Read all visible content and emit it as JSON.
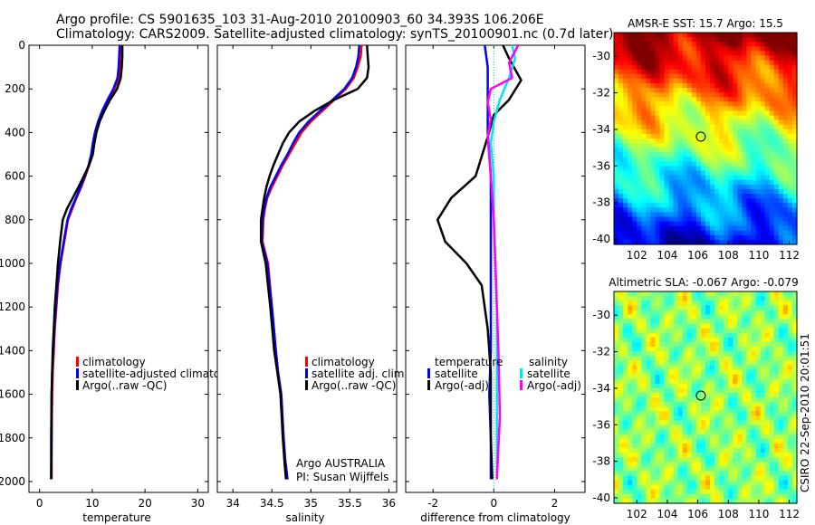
{
  "header": {
    "title_line1": "Argo profile: CS 5901635_103 31-Aug-2010 20100903_60 34.393S 106.206E",
    "title_line2": "Climatology: CARS2009. Satellite-adjusted climatology: synTS_20100901.nc (0.7d later)"
  },
  "footer": {
    "credit": "CSIRO 22-Sep-2010 20:01:51"
  },
  "colors": {
    "climatology": "#ff0000",
    "satellite": "#0000ff",
    "argo": "#000000",
    "sal_satellite": "#00e5ee",
    "sal_argo": "#ff00ff",
    "zero_line": "#00cccc"
  },
  "chart_data": [
    {
      "type": "line",
      "id": "temperature",
      "xlabel": "temperature",
      "ylabel": "",
      "xlim": [
        -2,
        32
      ],
      "ylim": [
        2050,
        0
      ],
      "xticks": [
        0,
        10,
        20,
        30
      ],
      "yticks": [
        0,
        200,
        400,
        600,
        800,
        1000,
        1200,
        1400,
        1600,
        1800,
        2000
      ],
      "legend": [
        "climatology",
        "satellite-adjusted climatolo",
        "Argo(..raw -QC)"
      ],
      "series": [
        {
          "name": "climatology",
          "color": "#ff0000",
          "x": [
            15.5,
            15.4,
            15.3,
            15.0,
            14.2,
            13.0,
            12.0,
            11.2,
            10.6,
            10.2,
            9.9,
            9.4,
            8.7,
            7.9,
            7.0,
            6.2,
            5.4,
            4.7,
            4.0,
            3.5,
            3.2,
            2.9,
            2.7,
            2.5,
            2.4,
            2.3,
            2.3
          ],
          "y": [
            0,
            50,
            100,
            150,
            200,
            250,
            300,
            350,
            400,
            450,
            500,
            550,
            600,
            650,
            700,
            750,
            800,
            900,
            1000,
            1100,
            1200,
            1300,
            1400,
            1500,
            1600,
            1800,
            1990
          ]
        },
        {
          "name": "satellite-adjusted climatolo",
          "color": "#0000ff",
          "x": [
            15.2,
            15.1,
            15.0,
            14.8,
            14.0,
            12.9,
            11.9,
            11.1,
            10.5,
            10.1,
            9.8,
            9.3,
            8.6,
            7.8,
            6.9,
            6.0,
            5.3,
            4.6,
            3.9,
            3.4,
            3.1,
            2.8,
            2.6,
            2.4,
            2.3,
            2.3,
            2.2
          ],
          "y": [
            0,
            50,
            100,
            150,
            200,
            250,
            300,
            350,
            400,
            450,
            500,
            550,
            600,
            650,
            700,
            750,
            800,
            900,
            1000,
            1100,
            1200,
            1300,
            1400,
            1500,
            1600,
            1800,
            1990
          ]
        },
        {
          "name": "Argo(..raw -QC)",
          "color": "#000000",
          "x": [
            15.7,
            15.7,
            15.6,
            15.4,
            14.7,
            13.4,
            12.3,
            11.4,
            10.8,
            10.4,
            10.1,
            9.4,
            8.4,
            7.4,
            6.3,
            5.2,
            4.4,
            3.9,
            3.5,
            3.2,
            2.9,
            2.7,
            2.5,
            2.4,
            2.3,
            2.2,
            2.2
          ],
          "y": [
            0,
            50,
            100,
            150,
            200,
            250,
            300,
            350,
            400,
            450,
            500,
            550,
            600,
            650,
            700,
            750,
            800,
            900,
            1000,
            1100,
            1200,
            1300,
            1400,
            1500,
            1600,
            1800,
            1990
          ]
        }
      ]
    },
    {
      "type": "line",
      "id": "salinity",
      "xlabel": "salinity",
      "ylabel": "",
      "xlim": [
        33.8,
        36.1
      ],
      "ylim": [
        2050,
        0
      ],
      "xticks": [
        34,
        34.5,
        35,
        35.5,
        36
      ],
      "yticks": [
        0,
        200,
        400,
        600,
        800,
        1000,
        1200,
        1400,
        1600,
        1800,
        2000
      ],
      "legend": [
        "climatology",
        "satellite adj. clim.",
        "Argo(..raw -QC)"
      ],
      "annotation_line1": "Argo AUSTRALIA",
      "annotation_line2": "PI: Susan Wijffels",
      "series": [
        {
          "name": "climatology",
          "color": "#ff0000",
          "x": [
            35.65,
            35.64,
            35.6,
            35.55,
            35.45,
            35.3,
            35.15,
            35.0,
            34.88,
            34.8,
            34.72,
            34.64,
            34.57,
            34.5,
            34.44,
            34.41,
            34.39,
            34.38,
            34.45,
            34.5,
            34.55,
            34.58,
            34.62,
            34.65,
            34.67,
            34.7
          ],
          "y": [
            0,
            50,
            100,
            150,
            200,
            250,
            300,
            350,
            400,
            450,
            500,
            550,
            600,
            650,
            700,
            750,
            800,
            900,
            1000,
            1200,
            1400,
            1500,
            1600,
            1800,
            1900,
            1990
          ]
        },
        {
          "name": "satellite adj. clim.",
          "color": "#0000ff",
          "x": [
            35.62,
            35.61,
            35.58,
            35.53,
            35.43,
            35.28,
            35.12,
            34.97,
            34.85,
            34.77,
            34.7,
            34.62,
            34.55,
            34.48,
            34.43,
            34.4,
            34.38,
            34.37,
            34.44,
            34.5,
            34.55,
            34.58,
            34.62,
            34.65,
            34.67,
            34.7
          ],
          "y": [
            0,
            50,
            100,
            150,
            200,
            250,
            300,
            350,
            400,
            450,
            500,
            550,
            600,
            650,
            700,
            750,
            800,
            900,
            1000,
            1200,
            1400,
            1500,
            1600,
            1800,
            1900,
            1990
          ]
        },
        {
          "name": "Argo(..raw -QC)",
          "color": "#000000",
          "x": [
            35.72,
            35.73,
            35.74,
            35.72,
            35.6,
            35.3,
            35.05,
            34.85,
            34.72,
            34.64,
            34.58,
            34.52,
            34.47,
            34.43,
            34.4,
            34.38,
            34.36,
            34.36,
            34.42,
            34.48,
            34.53,
            34.57,
            34.61,
            34.64,
            34.66,
            34.68
          ],
          "y": [
            0,
            50,
            100,
            150,
            200,
            250,
            300,
            350,
            400,
            450,
            500,
            550,
            600,
            650,
            700,
            750,
            800,
            900,
            1000,
            1200,
            1400,
            1500,
            1600,
            1800,
            1900,
            1990
          ]
        }
      ]
    },
    {
      "type": "line",
      "id": "difference",
      "xlabel": "difference from climatology",
      "ylabel": "",
      "xlim": [
        -2.9,
        3.0
      ],
      "ylim": [
        2050,
        0
      ],
      "xticks": [
        -2,
        0,
        2
      ],
      "yticks": [
        0,
        200,
        400,
        600,
        800,
        1000,
        1200,
        1400,
        1600,
        1800,
        2000
      ],
      "legend_left_title": "temperature",
      "legend_right_title": "salinity",
      "legend_left": [
        "satellite",
        "Argo(-adj)"
      ],
      "legend_right": [
        "satellite",
        "Argo(-adj)"
      ],
      "series": [
        {
          "name": "satellite",
          "group": "temperature",
          "color": "#0000ff",
          "x": [
            -0.3,
            -0.2,
            -0.2,
            -0.2,
            -0.2,
            -0.15,
            -0.1,
            -0.1,
            -0.1,
            -0.1,
            -0.1,
            -0.15,
            -0.1,
            -0.1
          ],
          "y": [
            0,
            100,
            200,
            300,
            400,
            500,
            600,
            800,
            1000,
            1200,
            1400,
            1600,
            1800,
            1990
          ]
        },
        {
          "name": "Argo(-adj)",
          "group": "temperature",
          "color": "#000000",
          "x": [
            0.3,
            0.5,
            0.9,
            0.5,
            0.0,
            -0.2,
            -0.6,
            -1.4,
            -1.85,
            -1.6,
            -0.9,
            -0.4,
            -0.2,
            -0.1,
            -0.1,
            -0.05
          ],
          "y": [
            0,
            60,
            160,
            250,
            320,
            420,
            600,
            700,
            800,
            900,
            1000,
            1100,
            1300,
            1500,
            1800,
            1990
          ]
        },
        {
          "name": "satellite",
          "group": "salinity",
          "color": "#00e5ee",
          "x": [
            0.6,
            0.7,
            0.5,
            0.2,
            0.0,
            -0.1,
            0.0,
            0.0,
            0.05,
            0.1,
            0.1,
            0.1,
            0.1
          ],
          "y": [
            0,
            60,
            150,
            250,
            350,
            450,
            600,
            800,
            1000,
            1200,
            1400,
            1700,
            1990
          ]
        },
        {
          "name": "Argo(-adj)",
          "group": "salinity",
          "color": "#ff00ff",
          "x": [
            0.8,
            0.5,
            0.6,
            -0.1,
            -0.2,
            -0.1,
            -0.2,
            -0.1,
            0.0,
            0.05,
            0.1,
            0.15,
            0.2,
            0.1
          ],
          "y": [
            0,
            80,
            150,
            200,
            260,
            340,
            420,
            600,
            800,
            1000,
            1200,
            1400,
            1700,
            1990
          ]
        }
      ]
    },
    {
      "type": "heatmap",
      "id": "sst_map",
      "title": "AMSR-E SST: 15.7 Argo: 15.5",
      "xlim": [
        100.5,
        112.5
      ],
      "ylim": [
        -40.3,
        -28.7
      ],
      "xticks": [
        102,
        104,
        106,
        108,
        110,
        112
      ],
      "yticks": [
        -30,
        -32,
        -34,
        -36,
        -38,
        -40
      ],
      "marker": {
        "lon": 106.2,
        "lat": -34.4
      },
      "colormap": "jet"
    },
    {
      "type": "heatmap",
      "id": "sla_map",
      "title": "Altimetric SLA: -0.067 Argo: -0.079",
      "xlim": [
        100.5,
        112.5
      ],
      "ylim": [
        -40.3,
        -28.7
      ],
      "xticks": [
        102,
        104,
        106,
        108,
        110,
        112
      ],
      "yticks": [
        -30,
        -32,
        -34,
        -36,
        -38,
        -40
      ],
      "marker": {
        "lon": 106.2,
        "lat": -34.4
      },
      "colormap": "jet"
    }
  ]
}
